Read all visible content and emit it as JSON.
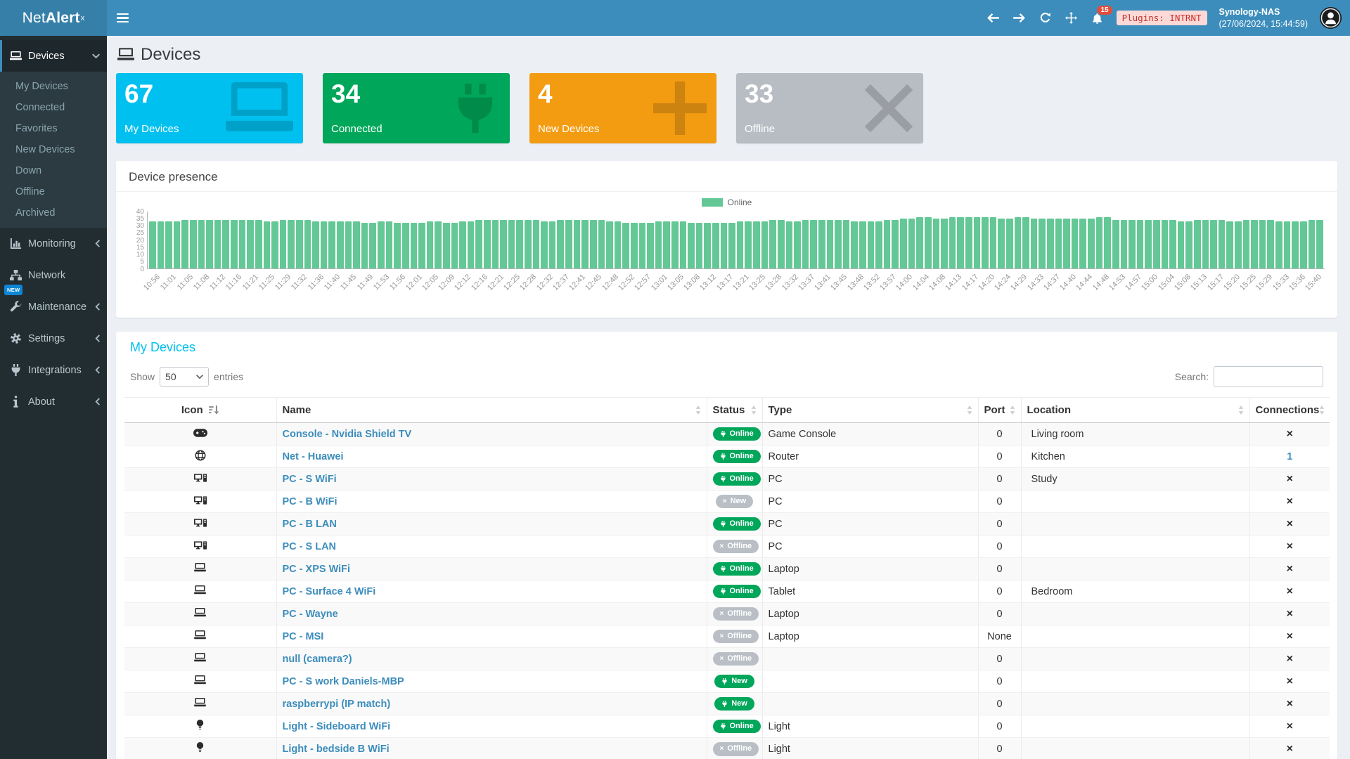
{
  "header": {
    "brand": {
      "prefix": "Net",
      "bold": "Alert",
      "sup": "x"
    },
    "notification_count": "15",
    "plugins_badge": "Plugins: INTRNT",
    "nas_name": "Synology-NAS",
    "nas_time": "(27/06/2024, 15:44:59)"
  },
  "sidebar": {
    "sections": [
      {
        "label": "Devices",
        "icon": "laptop-icon",
        "active": true,
        "chevron": "down",
        "children": [
          "My Devices",
          "Connected",
          "Favorites",
          "New Devices",
          "Down",
          "Offline",
          "Archived"
        ]
      },
      {
        "label": "Monitoring",
        "icon": "chart-icon",
        "chevron": "left"
      },
      {
        "label": "Network",
        "icon": "sitemap-icon",
        "chevron": ""
      },
      {
        "label": "Maintenance",
        "icon": "wrench-icon",
        "chevron": "left",
        "badge": "NEW"
      },
      {
        "label": "Settings",
        "icon": "gear-icon",
        "chevron": "left"
      },
      {
        "label": "Integrations",
        "icon": "plug-icon",
        "chevron": "left"
      },
      {
        "label": "About",
        "icon": "info-icon",
        "chevron": "left"
      }
    ]
  },
  "page": {
    "title": "Devices"
  },
  "summary_cards": [
    {
      "value": "67",
      "label": "My Devices",
      "color": "#00c0ef",
      "icon": "laptop-icon"
    },
    {
      "value": "34",
      "label": "Connected",
      "color": "#00a65a",
      "icon": "plug-icon"
    },
    {
      "value": "4",
      "label": "New Devices",
      "color": "#f39c12",
      "icon": "plus-icon"
    },
    {
      "value": "33",
      "label": "Offline",
      "color": "#b8bdc4",
      "icon": "x-icon"
    }
  ],
  "chart_data": {
    "type": "bar",
    "title": "Device presence",
    "legend_position": "top-center",
    "legend": [
      {
        "name": "Online",
        "color": "#64c896"
      }
    ],
    "ylim": [
      0,
      40
    ],
    "yticks": [
      0,
      5,
      10,
      15,
      20,
      25,
      30,
      35,
      40
    ],
    "categories": [
      "10:56",
      "11:01",
      "11:05",
      "11:08",
      "11:12",
      "11:16",
      "11:21",
      "11:25",
      "11:29",
      "11:32",
      "11:36",
      "11:40",
      "11:45",
      "11:49",
      "11:53",
      "11:56",
      "12:01",
      "12:05",
      "12:09",
      "12:12",
      "12:16",
      "12:21",
      "12:25",
      "12:28",
      "12:32",
      "12:37",
      "12:41",
      "12:45",
      "12:48",
      "12:52",
      "12:57",
      "13:01",
      "13:05",
      "13:08",
      "13:12",
      "13:17",
      "13:21",
      "13:25",
      "13:28",
      "13:32",
      "13:37",
      "13:41",
      "13:45",
      "13:48",
      "13:52",
      "13:57",
      "14:00",
      "14:04",
      "14:08",
      "14:13",
      "14:17",
      "14:20",
      "14:24",
      "14:29",
      "14:33",
      "14:37",
      "14:40",
      "14:44",
      "14:48",
      "14:53",
      "14:57",
      "15:00",
      "15:04",
      "15:08",
      "15:13",
      "15:17",
      "15:20",
      "15:25",
      "15:29",
      "15:33",
      "15:36",
      "15:40"
    ],
    "series": [
      {
        "name": "Online",
        "values": [
          33,
          33,
          34,
          34,
          34,
          34,
          34,
          33,
          34,
          34,
          33,
          33,
          33,
          32,
          33,
          32,
          32,
          33,
          32,
          33,
          34,
          34,
          34,
          34,
          33,
          34,
          34,
          34,
          33,
          32,
          32,
          33,
          33,
          32,
          32,
          32,
          33,
          33,
          34,
          33,
          34,
          34,
          34,
          33,
          33,
          34,
          35,
          36,
          35,
          36,
          36,
          36,
          35,
          36,
          35,
          35,
          35,
          35,
          36,
          34,
          34,
          34,
          34,
          33,
          34,
          34,
          33,
          34,
          34,
          33,
          33,
          34
        ]
      }
    ]
  },
  "devices_table": {
    "title": "My Devices",
    "show_label": "Show",
    "page_length": "50",
    "entries_label": "entries",
    "search_label": "Search:",
    "search_value": "",
    "columns": [
      "Icon",
      "Name",
      "Status",
      "Type",
      "Port",
      "Location",
      "Connections"
    ],
    "rows": [
      {
        "icon": "gamepad-icon",
        "name": "Console - Nvidia Shield TV",
        "status": {
          "label": "Online",
          "state": "online"
        },
        "type": "Game Console",
        "port": "0",
        "location": "Living room",
        "connections": "×"
      },
      {
        "icon": "globe-icon",
        "name": "Net - Huawei",
        "status": {
          "label": "Online",
          "state": "online"
        },
        "type": "Router",
        "port": "0",
        "location": "Kitchen",
        "connections": "1"
      },
      {
        "icon": "desktop-icon",
        "name": "PC - S WiFi",
        "status": {
          "label": "Online",
          "state": "online"
        },
        "type": "PC",
        "port": "0",
        "location": "Study",
        "connections": "×"
      },
      {
        "icon": "desktop-icon",
        "name": "PC - B WiFi",
        "status": {
          "label": "New",
          "state": "offline"
        },
        "type": "PC",
        "port": "0",
        "location": "",
        "connections": "×"
      },
      {
        "icon": "desktop-icon",
        "name": "PC - B LAN",
        "status": {
          "label": "Online",
          "state": "online"
        },
        "type": "PC",
        "port": "0",
        "location": "",
        "connections": "×"
      },
      {
        "icon": "desktop-icon",
        "name": "PC - S LAN",
        "status": {
          "label": "Offline",
          "state": "offline"
        },
        "type": "PC",
        "port": "0",
        "location": "",
        "connections": "×"
      },
      {
        "icon": "laptop-icon",
        "name": "PC - XPS WiFi",
        "status": {
          "label": "Online",
          "state": "online"
        },
        "type": "Laptop",
        "port": "0",
        "location": "",
        "connections": "×"
      },
      {
        "icon": "laptop-icon",
        "name": "PC - Surface 4 WiFi",
        "status": {
          "label": "Online",
          "state": "online"
        },
        "type": "Tablet",
        "port": "0",
        "location": "Bedroom",
        "connections": "×"
      },
      {
        "icon": "laptop-icon",
        "name": "PC - Wayne",
        "status": {
          "label": "Offline",
          "state": "offline"
        },
        "type": "Laptop",
        "port": "0",
        "location": "",
        "connections": "×"
      },
      {
        "icon": "laptop-icon",
        "name": "PC - MSI",
        "status": {
          "label": "Offline",
          "state": "offline"
        },
        "type": "Laptop",
        "port": "None",
        "location": "",
        "connections": "×"
      },
      {
        "icon": "laptop-icon",
        "name": "null (camera?)",
        "status": {
          "label": "Offline",
          "state": "offline"
        },
        "type": "",
        "port": "0",
        "location": "",
        "connections": "×"
      },
      {
        "icon": "laptop-icon",
        "name": "PC - S work Daniels-MBP",
        "status": {
          "label": "New",
          "state": "online"
        },
        "type": "",
        "port": "0",
        "location": "",
        "connections": "×"
      },
      {
        "icon": "laptop-icon",
        "name": "raspberrypi (IP match)",
        "status": {
          "label": "New",
          "state": "online"
        },
        "type": "",
        "port": "0",
        "location": "",
        "connections": "×"
      },
      {
        "icon": "bulb-icon",
        "name": "Light - Sideboard WiFi",
        "status": {
          "label": "Online",
          "state": "online"
        },
        "type": "Light",
        "port": "0",
        "location": "",
        "connections": "×"
      },
      {
        "icon": "bulb-icon",
        "name": "Light - bedside B WiFi",
        "status": {
          "label": "Offline",
          "state": "offline"
        },
        "type": "Light",
        "port": "0",
        "location": "",
        "connections": "×"
      }
    ]
  }
}
